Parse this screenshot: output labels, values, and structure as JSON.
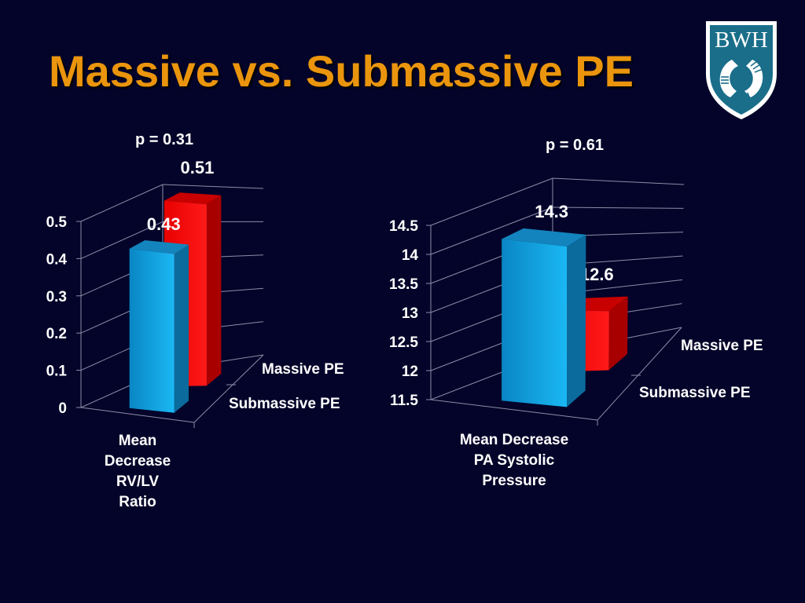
{
  "slide": {
    "title": "Massive vs. Submassive PE",
    "logo_text": "BWH",
    "colors": {
      "background": "#04042a",
      "title": "#ea950d",
      "massive": "#ff0000",
      "submassive": "#12aae8",
      "logo": "#1a6e8a"
    }
  },
  "chart_data": [
    {
      "type": "bar",
      "style": "3d-column",
      "annotation": "p = 0.31",
      "xlabel": "Mean\nDecrease\nRV/LV\nRatio",
      "xlabel_lines": [
        "Mean",
        "Decrease",
        "RV/LV",
        "Ratio"
      ],
      "ylim": [
        0,
        0.5
      ],
      "yticks": [
        "0",
        "0.1",
        "0.2",
        "0.3",
        "0.4",
        "0.5"
      ],
      "ytick_values": [
        0,
        0.1,
        0.2,
        0.3,
        0.4,
        0.5
      ],
      "grid": true,
      "series": [
        {
          "name": "Massive PE",
          "values": [
            0.51
          ],
          "labels": [
            "0.51"
          ],
          "color": "#ff0000"
        },
        {
          "name": "Submassive PE",
          "values": [
            0.43
          ],
          "labels": [
            "0.43"
          ],
          "color": "#12aae8"
        }
      ]
    },
    {
      "type": "bar",
      "style": "3d-column",
      "annotation": "p = 0.61",
      "xlabel": "Mean Decrease\nPA Systolic\nPressure",
      "xlabel_lines": [
        "Mean Decrease",
        "PA Systolic",
        "Pressure"
      ],
      "ylim": [
        11.5,
        14.5
      ],
      "yticks": [
        "11.5",
        "12",
        "12.5",
        "13",
        "13.5",
        "14",
        "14.5"
      ],
      "ytick_values": [
        11.5,
        12,
        12.5,
        13,
        13.5,
        14,
        14.5
      ],
      "grid": true,
      "series": [
        {
          "name": "Massive PE",
          "values": [
            12.6
          ],
          "labels": [
            "12.6"
          ],
          "color": "#ff0000"
        },
        {
          "name": "Submassive PE",
          "values": [
            14.3
          ],
          "labels": [
            "14.3"
          ],
          "color": "#12aae8"
        }
      ]
    }
  ]
}
